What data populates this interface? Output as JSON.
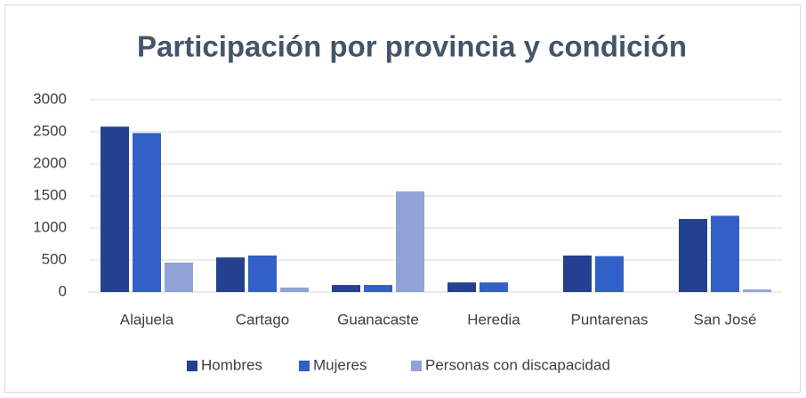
{
  "chart_data": {
    "type": "bar",
    "title": "Participación por provincia y condición",
    "categories": [
      "Alajuela",
      "Cartago",
      "Guanacaste",
      "Heredia",
      "Puntarenas",
      "San José"
    ],
    "series": [
      {
        "name": "Hombres",
        "color": "#24418f",
        "values": [
          2580,
          540,
          110,
          150,
          570,
          1140
        ]
      },
      {
        "name": "Mujeres",
        "color": "#3160c6",
        "values": [
          2480,
          570,
          110,
          150,
          560,
          1190
        ]
      },
      {
        "name": "Personas con discapacidad",
        "color": "#90a3d6",
        "values": [
          460,
          70,
          1570,
          0,
          0,
          40
        ]
      }
    ],
    "ylim": [
      0,
      3000
    ],
    "yticks": [
      0,
      500,
      1000,
      1500,
      2000,
      2500,
      3000
    ],
    "grid": true,
    "legend": "bottom"
  }
}
